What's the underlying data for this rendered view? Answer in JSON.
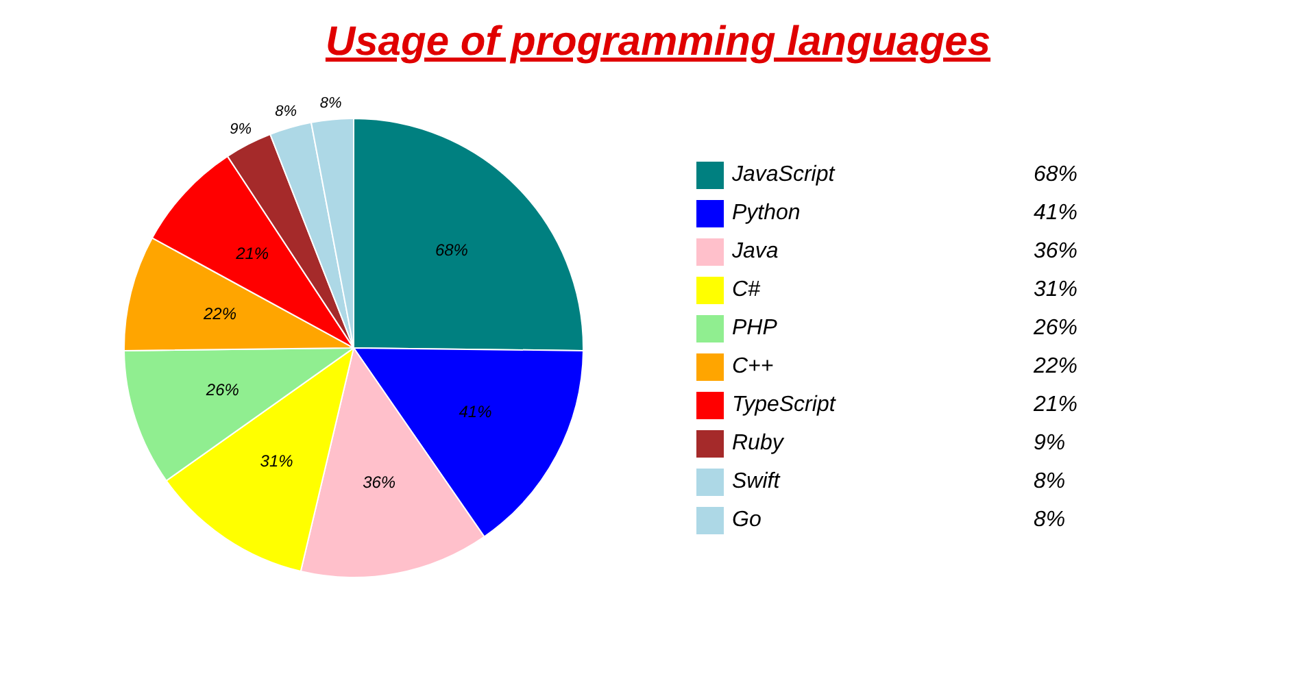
{
  "chart_data": {
    "type": "pie",
    "title": "Usage of programming languages",
    "categories": [
      "JavaScript",
      "Python",
      "Java",
      "C#",
      "PHP",
      "C++",
      "TypeScript",
      "Ruby",
      "Swift",
      "Go"
    ],
    "values": [
      68,
      41,
      36,
      31,
      26,
      22,
      21,
      9,
      8,
      8
    ],
    "value_labels": [
      "68%",
      "41%",
      "36%",
      "31%",
      "26%",
      "22%",
      "21%",
      "9%",
      "8%",
      "8%"
    ],
    "colors": [
      "#008080",
      "#0000ff",
      "#ffc0cb",
      "#ffff00",
      "#90ee90",
      "#ffa500",
      "#ff0000",
      "#a52a2a",
      "#add8e6",
      "#add8e6"
    ],
    "legend": "right"
  }
}
